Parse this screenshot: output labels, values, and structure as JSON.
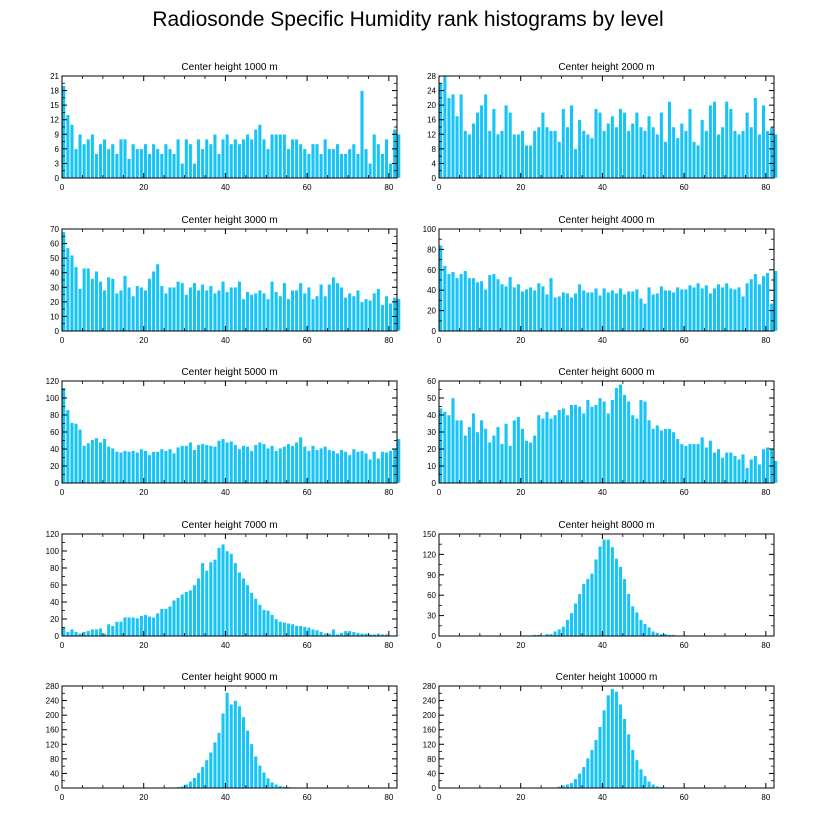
{
  "title": "Radiosonde Specific Humidity rank histograms by level",
  "colors": {
    "bar": "#18c4f5",
    "bar_edge": "#ffffff",
    "axis": "#000000"
  },
  "chart_data": [
    {
      "type": "bar",
      "title": "Center height 1000 m",
      "xlim": [
        0,
        82
      ],
      "xticks": [
        0,
        20,
        40,
        60,
        80
      ],
      "ylim": [
        0,
        21
      ],
      "yticks": [
        0,
        3,
        6,
        9,
        12,
        15,
        18,
        21
      ],
      "values": [
        19,
        13,
        11,
        6,
        9,
        7,
        8,
        9,
        5,
        7,
        8,
        6,
        7,
        5,
        8,
        8,
        4,
        7,
        6,
        6,
        7,
        5,
        7,
        6,
        5,
        7,
        6,
        5,
        8,
        3,
        8,
        7,
        3,
        8,
        6,
        8,
        7,
        9,
        5,
        8,
        9,
        7,
        8,
        7,
        8,
        9,
        8,
        10,
        11,
        8,
        6,
        9,
        9,
        9,
        9,
        6,
        8,
        8,
        7,
        6,
        5,
        7,
        7,
        5,
        8,
        6,
        6,
        7,
        5,
        5,
        6,
        7,
        5,
        18,
        6,
        3,
        9,
        7,
        5,
        8,
        3,
        10,
        9
      ]
    },
    {
      "type": "bar",
      "title": "Center height 2000 m",
      "xlim": [
        0,
        82
      ],
      "xticks": [
        0,
        20,
        40,
        60,
        80
      ],
      "ylim": [
        0,
        28
      ],
      "yticks": [
        0,
        4,
        8,
        12,
        16,
        20,
        24,
        28
      ],
      "values": [
        26,
        28,
        22,
        23,
        17,
        23,
        13,
        12,
        15,
        18,
        20,
        23,
        13,
        19,
        12,
        13,
        20,
        18,
        12,
        12,
        13,
        9,
        9,
        13,
        14,
        18,
        14,
        13,
        13,
        10,
        19,
        14,
        20,
        8,
        16,
        13,
        12,
        11,
        19,
        18,
        13,
        15,
        17,
        14,
        19,
        18,
        13,
        15,
        18,
        14,
        13,
        17,
        14,
        12,
        18,
        10,
        21,
        14,
        11,
        15,
        13,
        19,
        10,
        9,
        16,
        13,
        20,
        21,
        12,
        14,
        21,
        19,
        13,
        12,
        13,
        18,
        14,
        22,
        12,
        20,
        13,
        14,
        12
      ]
    },
    {
      "type": "bar",
      "title": "Center height 3000 m",
      "xlim": [
        0,
        82
      ],
      "xticks": [
        0,
        20,
        40,
        60,
        80
      ],
      "ylim": [
        0,
        70
      ],
      "yticks": [
        0,
        10,
        20,
        30,
        40,
        50,
        60,
        70
      ],
      "values": [
        68,
        57,
        52,
        44,
        29,
        43,
        43,
        36,
        41,
        34,
        28,
        37,
        36,
        26,
        28,
        38,
        30,
        24,
        31,
        30,
        28,
        36,
        41,
        46,
        31,
        26,
        30,
        30,
        34,
        33,
        25,
        30,
        33,
        28,
        32,
        28,
        31,
        26,
        28,
        34,
        27,
        30,
        30,
        34,
        22,
        27,
        25,
        26,
        28,
        26,
        22,
        34,
        27,
        24,
        33,
        22,
        28,
        28,
        33,
        26,
        30,
        22,
        24,
        32,
        24,
        32,
        37,
        33,
        30,
        23,
        26,
        24,
        28,
        20,
        22,
        21,
        26,
        29,
        18,
        24,
        19,
        23,
        22
      ]
    },
    {
      "type": "bar",
      "title": "Center height 4000 m",
      "xlim": [
        0,
        82
      ],
      "xticks": [
        0,
        20,
        40,
        60,
        80
      ],
      "ylim": [
        0,
        100
      ],
      "yticks": [
        0,
        20,
        40,
        60,
        80,
        100
      ],
      "values": [
        84,
        64,
        56,
        58,
        52,
        56,
        59,
        52,
        52,
        48,
        49,
        41,
        55,
        56,
        51,
        46,
        44,
        53,
        43,
        46,
        39,
        41,
        43,
        40,
        47,
        44,
        36,
        52,
        33,
        34,
        38,
        37,
        33,
        37,
        46,
        40,
        38,
        38,
        42,
        35,
        42,
        38,
        40,
        37,
        42,
        36,
        39,
        39,
        41,
        32,
        27,
        43,
        36,
        37,
        44,
        40,
        40,
        38,
        43,
        41,
        41,
        45,
        43,
        47,
        42,
        45,
        37,
        42,
        46,
        43,
        47,
        42,
        41,
        43,
        34,
        47,
        51,
        56,
        46,
        54,
        57,
        27,
        59
      ]
    },
    {
      "type": "bar",
      "title": "Center height 5000 m",
      "xlim": [
        0,
        82
      ],
      "xticks": [
        0,
        20,
        40,
        60,
        80
      ],
      "ylim": [
        0,
        120
      ],
      "yticks": [
        0,
        20,
        40,
        60,
        80,
        100,
        120
      ],
      "values": [
        112,
        86,
        71,
        70,
        63,
        44,
        47,
        51,
        53,
        48,
        52,
        43,
        41,
        37,
        36,
        38,
        37,
        38,
        36,
        40,
        38,
        33,
        37,
        37,
        40,
        38,
        40,
        35,
        42,
        44,
        44,
        48,
        39,
        45,
        46,
        45,
        44,
        43,
        50,
        52,
        48,
        49,
        45,
        40,
        44,
        43,
        38,
        45,
        48,
        46,
        41,
        44,
        38,
        41,
        43,
        46,
        44,
        48,
        54,
        43,
        38,
        44,
        39,
        41,
        43,
        39,
        38,
        35,
        39,
        37,
        33,
        40,
        37,
        38,
        35,
        28,
        37,
        29,
        37,
        36,
        38,
        40,
        52
      ]
    },
    {
      "type": "bar",
      "title": "Center height 6000 m",
      "xlim": [
        0,
        82
      ],
      "xticks": [
        0,
        20,
        40,
        60,
        80
      ],
      "ylim": [
        0,
        60
      ],
      "yticks": [
        0,
        10,
        20,
        30,
        40,
        50,
        60
      ],
      "values": [
        44,
        42,
        40,
        50,
        37,
        37,
        28,
        33,
        41,
        30,
        37,
        32,
        24,
        28,
        33,
        23,
        35,
        22,
        37,
        39,
        32,
        25,
        24,
        28,
        40,
        38,
        42,
        38,
        40,
        43,
        44,
        40,
        46,
        46,
        45,
        41,
        49,
        45,
        46,
        50,
        48,
        41,
        49,
        56,
        58,
        52,
        48,
        40,
        38,
        49,
        48,
        37,
        32,
        34,
        31,
        32,
        32,
        30,
        26,
        23,
        22,
        23,
        23,
        23,
        27,
        21,
        25,
        18,
        20,
        15,
        18,
        18,
        16,
        14,
        17,
        9,
        14,
        16,
        11,
        20,
        21,
        20,
        13
      ]
    },
    {
      "type": "bar",
      "title": "Center height 7000 m",
      "xlim": [
        0,
        82
      ],
      "xticks": [
        0,
        20,
        40,
        60,
        80
      ],
      "ylim": [
        0,
        120
      ],
      "yticks": [
        0,
        20,
        40,
        60,
        80,
        100,
        120
      ],
      "values": [
        10,
        5,
        8,
        5,
        3,
        5,
        6,
        8,
        8,
        9,
        3,
        14,
        12,
        17,
        17,
        22,
        22,
        22,
        21,
        24,
        25,
        23,
        22,
        27,
        32,
        32,
        35,
        42,
        45,
        49,
        52,
        54,
        60,
        68,
        86,
        77,
        87,
        90,
        104,
        108,
        100,
        97,
        86,
        75,
        68,
        60,
        51,
        44,
        37,
        31,
        30,
        25,
        20,
        17,
        16,
        15,
        14,
        12,
        12,
        11,
        10,
        8,
        7,
        5,
        3,
        3,
        8,
        2,
        4,
        6,
        6,
        5,
        4,
        3,
        3,
        2,
        2,
        3,
        2,
        2,
        1,
        1,
        1
      ]
    },
    {
      "type": "bar",
      "title": "Center height 8000 m",
      "xlim": [
        0,
        82
      ],
      "xticks": [
        0,
        20,
        40,
        60,
        80
      ],
      "ylim": [
        0,
        150
      ],
      "yticks": [
        0,
        30,
        60,
        90,
        120,
        150
      ],
      "values": [
        0,
        0,
        0,
        0,
        0,
        0,
        0,
        0,
        0,
        0,
        0,
        0,
        0,
        0,
        0,
        0,
        0,
        0,
        0,
        0,
        0,
        1,
        1,
        2,
        2,
        1,
        3,
        3,
        7,
        10,
        14,
        24,
        34,
        48,
        62,
        77,
        84,
        92,
        113,
        132,
        142,
        142,
        131,
        114,
        102,
        84,
        62,
        44,
        35,
        24,
        18,
        13,
        7,
        5,
        3,
        3,
        2,
        2,
        1,
        1,
        1,
        0,
        0,
        0,
        0,
        0,
        0,
        0,
        0,
        0,
        0,
        0,
        0,
        0,
        0,
        0,
        0,
        0,
        0,
        0,
        0,
        0,
        0
      ]
    },
    {
      "type": "bar",
      "title": "Center height 9000 m",
      "xlim": [
        0,
        82
      ],
      "xticks": [
        0,
        20,
        40,
        60,
        80
      ],
      "ylim": [
        0,
        280
      ],
      "yticks": [
        0,
        40,
        80,
        120,
        160,
        200,
        240,
        280
      ],
      "values": [
        0,
        0,
        0,
        0,
        0,
        0,
        0,
        0,
        0,
        0,
        0,
        0,
        0,
        0,
        0,
        0,
        0,
        0,
        0,
        0,
        0,
        0,
        0,
        0,
        0,
        0,
        1,
        2,
        3,
        5,
        10,
        18,
        28,
        42,
        58,
        77,
        98,
        126,
        152,
        205,
        262,
        230,
        240,
        225,
        195,
        158,
        121,
        87,
        62,
        43,
        27,
        16,
        10,
        6,
        4,
        3,
        2,
        1,
        1,
        0,
        0,
        0,
        0,
        0,
        0,
        0,
        0,
        0,
        0,
        0,
        0,
        0,
        0,
        0,
        0,
        0,
        0,
        0,
        0,
        0,
        0,
        0,
        0
      ]
    },
    {
      "type": "bar",
      "title": "Center height 10000 m",
      "xlim": [
        0,
        82
      ],
      "xticks": [
        0,
        20,
        40,
        60,
        80
      ],
      "ylim": [
        0,
        280
      ],
      "yticks": [
        0,
        40,
        80,
        120,
        160,
        200,
        240,
        280
      ],
      "values": [
        0,
        0,
        0,
        0,
        0,
        0,
        0,
        0,
        0,
        0,
        0,
        0,
        0,
        0,
        0,
        0,
        0,
        0,
        0,
        0,
        0,
        0,
        0,
        0,
        0,
        0,
        0,
        1,
        2,
        4,
        7,
        10,
        14,
        25,
        40,
        58,
        82,
        105,
        132,
        168,
        214,
        255,
        272,
        265,
        230,
        190,
        148,
        105,
        77,
        52,
        33,
        18,
        10,
        5,
        3,
        2,
        2,
        1,
        1,
        1,
        0,
        0,
        0,
        0,
        1,
        0,
        0,
        0,
        0,
        0,
        0,
        0,
        0,
        0,
        0,
        0,
        0,
        0,
        0,
        0,
        0,
        0,
        0
      ]
    }
  ]
}
